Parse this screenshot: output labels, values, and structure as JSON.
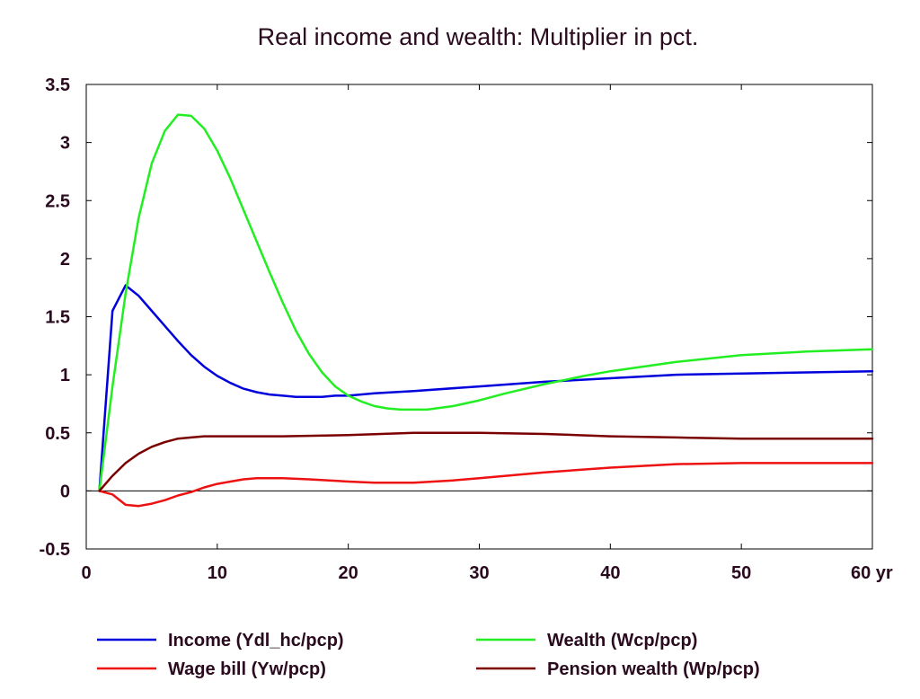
{
  "chart_data": {
    "type": "line",
    "title": "Real income and wealth: Multiplier in pct.",
    "xlabel": "",
    "ylabel": "",
    "xlim": [
      0,
      60
    ],
    "ylim": [
      -0.5,
      3.5
    ],
    "x_unit_label": "yr",
    "x_ticks": [
      0,
      10,
      20,
      30,
      40,
      50,
      60
    ],
    "x_tick_labels": [
      "0",
      "10",
      "20",
      "30",
      "40",
      "50",
      "60 yr"
    ],
    "y_ticks": [
      -0.5,
      0,
      0.5,
      1,
      1.5,
      2,
      2.5,
      3,
      3.5
    ],
    "y_tick_labels": [
      "-0.5",
      "0",
      "0.5",
      "1",
      "1.5",
      "2",
      "2.5",
      "3",
      "3.5"
    ],
    "grid": false,
    "zero_line": true,
    "legend_position": "bottom",
    "series": [
      {
        "name": "Income (Ydl_hc/pcp)",
        "color": "#0000dd",
        "x": [
          1,
          2,
          3,
          4,
          5,
          6,
          7,
          8,
          9,
          10,
          11,
          12,
          13,
          14,
          15,
          16,
          17,
          18,
          19,
          20,
          22,
          25,
          30,
          35,
          40,
          45,
          50,
          55,
          60
        ],
        "y": [
          0.0,
          1.55,
          1.77,
          1.68,
          1.55,
          1.42,
          1.29,
          1.17,
          1.07,
          0.99,
          0.93,
          0.88,
          0.85,
          0.83,
          0.82,
          0.81,
          0.81,
          0.81,
          0.82,
          0.82,
          0.84,
          0.86,
          0.9,
          0.94,
          0.97,
          1.0,
          1.01,
          1.02,
          1.03
        ]
      },
      {
        "name": "Wealth (Wcp/pcp)",
        "color": "#22ee22",
        "x": [
          1,
          2,
          3,
          4,
          5,
          6,
          7,
          8,
          9,
          10,
          11,
          12,
          13,
          14,
          15,
          16,
          17,
          18,
          19,
          20,
          21,
          22,
          23,
          24,
          25,
          26,
          28,
          30,
          32,
          35,
          38,
          40,
          45,
          50,
          55,
          60
        ],
        "y": [
          0.0,
          0.9,
          1.7,
          2.35,
          2.82,
          3.1,
          3.24,
          3.23,
          3.12,
          2.93,
          2.69,
          2.42,
          2.15,
          1.88,
          1.62,
          1.38,
          1.18,
          1.02,
          0.9,
          0.82,
          0.77,
          0.73,
          0.71,
          0.7,
          0.7,
          0.7,
          0.73,
          0.78,
          0.84,
          0.92,
          0.99,
          1.03,
          1.11,
          1.17,
          1.2,
          1.22
        ]
      },
      {
        "name": "Wage bill (Yw/pcp)",
        "color": "#ee1111",
        "x": [
          1,
          2,
          3,
          4,
          5,
          6,
          7,
          8,
          9,
          10,
          11,
          12,
          13,
          14,
          15,
          17,
          20,
          22,
          25,
          28,
          30,
          35,
          40,
          45,
          50,
          55,
          60
        ],
        "y": [
          0.0,
          -0.03,
          -0.12,
          -0.13,
          -0.11,
          -0.08,
          -0.04,
          -0.01,
          0.03,
          0.06,
          0.08,
          0.1,
          0.11,
          0.11,
          0.11,
          0.1,
          0.08,
          0.07,
          0.07,
          0.09,
          0.11,
          0.16,
          0.2,
          0.23,
          0.24,
          0.24,
          0.24
        ]
      },
      {
        "name": "Pension wealth (Wp/pcp)",
        "color": "#7a0000",
        "x": [
          1,
          2,
          3,
          4,
          5,
          6,
          7,
          8,
          9,
          10,
          12,
          15,
          20,
          25,
          30,
          35,
          40,
          45,
          50,
          55,
          60
        ],
        "y": [
          0.0,
          0.13,
          0.24,
          0.32,
          0.38,
          0.42,
          0.45,
          0.46,
          0.47,
          0.47,
          0.47,
          0.47,
          0.48,
          0.5,
          0.5,
          0.49,
          0.47,
          0.46,
          0.45,
          0.45,
          0.45
        ]
      }
    ]
  }
}
